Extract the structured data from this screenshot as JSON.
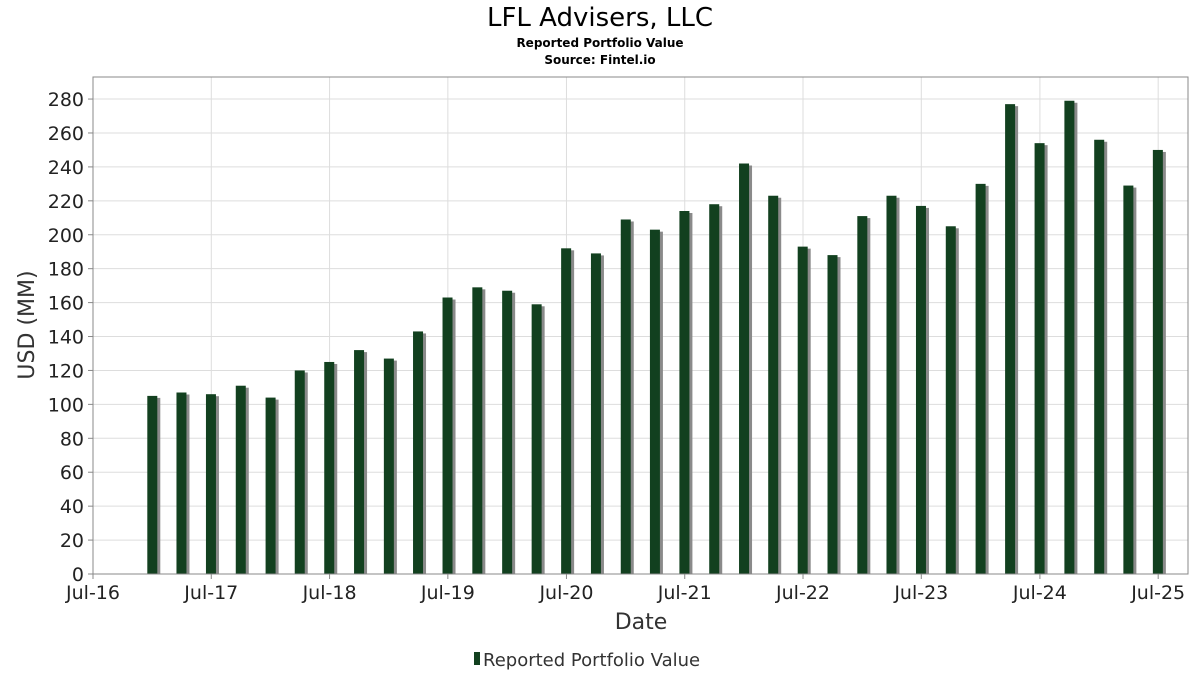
{
  "header": {
    "title": "LFL Advisers, LLC",
    "subtitle": "Reported Portfolio Value",
    "source": "Source: Fintel.io"
  },
  "chart_data": {
    "type": "bar",
    "title": "LFL Advisers, LLC",
    "subtitle": "Reported Portfolio Value",
    "xlabel": "Date",
    "ylabel": "USD (MM)",
    "ylim": [
      0,
      293
    ],
    "yticks": [
      0,
      20,
      40,
      60,
      80,
      100,
      120,
      140,
      160,
      180,
      200,
      220,
      240,
      260,
      280
    ],
    "xlim": [
      "2016-07-01",
      "2025-10-01"
    ],
    "xticks": [
      {
        "date": "2016-07-01",
        "label": "Jul-16"
      },
      {
        "date": "2017-07-01",
        "label": "Jul-17"
      },
      {
        "date": "2018-07-01",
        "label": "Jul-18"
      },
      {
        "date": "2019-07-01",
        "label": "Jul-19"
      },
      {
        "date": "2020-07-01",
        "label": "Jul-20"
      },
      {
        "date": "2021-07-01",
        "label": "Jul-21"
      },
      {
        "date": "2022-07-01",
        "label": "Jul-22"
      },
      {
        "date": "2023-07-01",
        "label": "Jul-23"
      },
      {
        "date": "2024-07-01",
        "label": "Jul-24"
      },
      {
        "date": "2025-07-01",
        "label": "Jul-25"
      }
    ],
    "grid": true,
    "legend_position": "bottom-center",
    "colors": {
      "bar": "#12401f",
      "shadow": "#8a8a8a"
    },
    "series": [
      {
        "name": "Reported Portfolio Value",
        "x": [
          "2016-12-31",
          "2017-03-31",
          "2017-06-30",
          "2017-09-30",
          "2017-12-31",
          "2018-03-31",
          "2018-06-30",
          "2018-09-30",
          "2018-12-31",
          "2019-03-31",
          "2019-06-30",
          "2019-09-30",
          "2019-12-31",
          "2020-03-31",
          "2020-06-30",
          "2020-09-30",
          "2020-12-31",
          "2021-03-31",
          "2021-06-30",
          "2021-09-30",
          "2021-12-31",
          "2022-03-31",
          "2022-06-30",
          "2022-09-30",
          "2022-12-31",
          "2023-03-31",
          "2023-06-30",
          "2023-09-30",
          "2023-12-31",
          "2024-03-31",
          "2024-06-30",
          "2024-09-30",
          "2024-12-31",
          "2025-03-31",
          "2025-06-30"
        ],
        "values": [
          105,
          107,
          106,
          111,
          104,
          120,
          125,
          132,
          127,
          143,
          163,
          169,
          167,
          159,
          192,
          189,
          209,
          203,
          214,
          218,
          242,
          223,
          193,
          188,
          211,
          223,
          217,
          205,
          230,
          277,
          254,
          279,
          256,
          229,
          250
        ]
      }
    ]
  }
}
